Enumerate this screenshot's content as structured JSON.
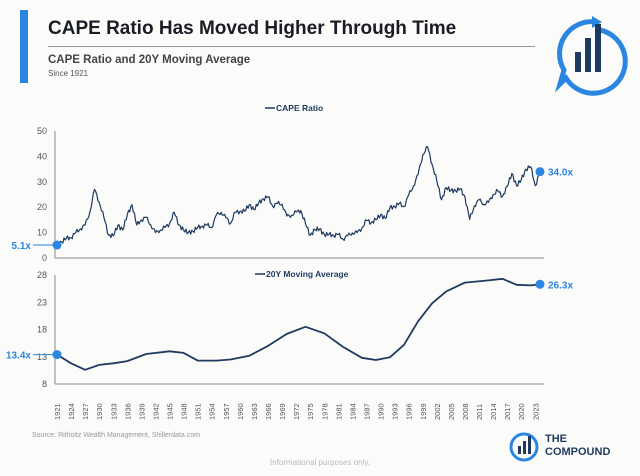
{
  "header": {
    "title": "CAPE Ratio Has Moved Higher Through Time",
    "subtitle": "CAPE Ratio and 20Y Moving Average",
    "since": "Since 1921"
  },
  "footer": {
    "source": "Source: Ritholtz Wealth Management, Shillerdata.com",
    "disclaimer": "Informational purposes only.",
    "brand_line1": "THE",
    "brand_line2": "COMPOUND"
  },
  "colors": {
    "line": "#1f3a5f",
    "accent": "#2a86e0",
    "label": "#2a86e0"
  },
  "chart_data": [
    {
      "type": "line",
      "title": "CAPE Ratio",
      "legend": "CAPE Ratio",
      "legend_position": "top-center",
      "ylim": [
        0,
        50
      ],
      "yticks": [
        0,
        10,
        20,
        30,
        40,
        50
      ],
      "x_start": 1921,
      "values": [
        5.1,
        6.3,
        7.8,
        8.0,
        10,
        11.5,
        13,
        18,
        27,
        22,
        16,
        9,
        8.7,
        13,
        11,
        17,
        21,
        13,
        15,
        16,
        13,
        10,
        11,
        12,
        13.5,
        18,
        13,
        11,
        10,
        10.5,
        12,
        12.5,
        13,
        12,
        17,
        18,
        16,
        13.6,
        18,
        18.3,
        18.4,
        21,
        19,
        21.6,
        23.3,
        24.1,
        20.4,
        21.5,
        21.2,
        16.5,
        16.8,
        18.1,
        18.7,
        13.5,
        8.9,
        11.2,
        11.4,
        9.2,
        9.3,
        8.9,
        9.3,
        7.4,
        8.8,
        9.9,
        10,
        11.7,
        14.9,
        13.9,
        15.1,
        17,
        15.6,
        19.8,
        20.3,
        21.4,
        20.2,
        24.8,
        28.3,
        32.9,
        40.6,
        43.8,
        36.9,
        30.3,
        22.9,
        27.7,
        26.6,
        26.5,
        27.2,
        24,
        15.2,
        20.5,
        22.9,
        21.2,
        21.9,
        24.9,
        26.5,
        24.2,
        28.1,
        33.3,
        28.4,
        30.8,
        35,
        36,
        28.5,
        34.0
      ],
      "annotations": [
        {
          "label": "5.1x",
          "year": 1921,
          "value": 5.1
        },
        {
          "label": "34.0x",
          "year": 2024,
          "value": 34.0
        }
      ]
    },
    {
      "type": "line",
      "title": "20Y Moving Average",
      "legend": "20Y Moving Average",
      "legend_position": "top-center",
      "ylim": [
        8,
        28
      ],
      "yticks": [
        8,
        13,
        18,
        23,
        28
      ],
      "points": [
        [
          1921,
          13.4
        ],
        [
          1924,
          11.8
        ],
        [
          1927,
          10.6
        ],
        [
          1930,
          11.5
        ],
        [
          1933,
          11.8
        ],
        [
          1936,
          12.2
        ],
        [
          1940,
          13.5
        ],
        [
          1945,
          14
        ],
        [
          1948,
          13.7
        ],
        [
          1951,
          12.3
        ],
        [
          1955,
          12.3
        ],
        [
          1958,
          12.5
        ],
        [
          1962,
          13.2
        ],
        [
          1966,
          15
        ],
        [
          1970,
          17.2
        ],
        [
          1974,
          18.5
        ],
        [
          1978,
          17.3
        ],
        [
          1982,
          14.8
        ],
        [
          1986,
          12.8
        ],
        [
          1989,
          12.4
        ],
        [
          1992,
          12.9
        ],
        [
          1995,
          15.2
        ],
        [
          1998,
          19.5
        ],
        [
          2001,
          22.8
        ],
        [
          2004,
          25
        ],
        [
          2008,
          26.6
        ],
        [
          2013,
          27
        ],
        [
          2016,
          27.3
        ],
        [
          2019,
          26.2
        ],
        [
          2022,
          26.1
        ],
        [
          2024,
          26.3
        ]
      ],
      "annotations": [
        {
          "label": "13.4x",
          "year": 1921,
          "value": 13.4
        },
        {
          "label": "26.3x",
          "year": 2024,
          "value": 26.3
        }
      ]
    }
  ],
  "xticks": [
    "1921",
    "1924",
    "1927",
    "1930",
    "1933",
    "1936",
    "1939",
    "1942",
    "1945",
    "1948",
    "1951",
    "1954",
    "1957",
    "1960",
    "1963",
    "1966",
    "1969",
    "1972",
    "1975",
    "1978",
    "1981",
    "1984",
    "1987",
    "1990",
    "1993",
    "1996",
    "1999",
    "2002",
    "2005",
    "2008",
    "2011",
    "2014",
    "2017",
    "2020",
    "2023"
  ]
}
